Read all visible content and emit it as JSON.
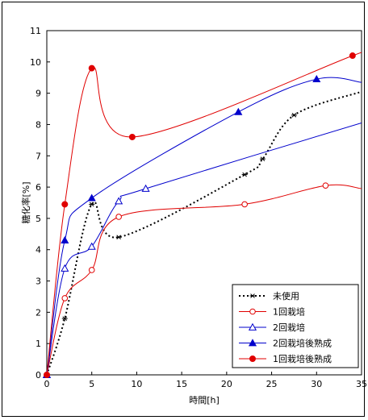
{
  "chart_data": {
    "type": "line",
    "title": "",
    "xlabel": "時間[h]",
    "ylabel": "糖化率[%]",
    "xlim": [
      0,
      35
    ],
    "ylim": [
      0,
      11
    ],
    "xticks": [
      "0",
      "5",
      "10",
      "15",
      "20",
      "25",
      "30",
      "35"
    ],
    "yticks": [
      "0",
      "1",
      "2",
      "3",
      "4",
      "5",
      "6",
      "7",
      "8",
      "9",
      "10",
      "11"
    ],
    "grid": false,
    "legend_position": "bottom-right",
    "series": [
      {
        "name": "未使用",
        "color": "#000000",
        "line_style": "dotted",
        "marker": "asterisk",
        "x": [
          0,
          2,
          5,
          8,
          22,
          24,
          27.5,
          35
        ],
        "y": [
          0,
          1.8,
          5.45,
          4.4,
          6.4,
          6.9,
          8.3,
          9.05
        ]
      },
      {
        "name": "1回栽培",
        "color": "#e00000",
        "line_style": "solid",
        "marker": "open-circle",
        "x": [
          0,
          2,
          5,
          8,
          22,
          31,
          35
        ],
        "y": [
          0,
          2.45,
          3.35,
          5.05,
          5.45,
          6.05,
          5.95
        ]
      },
      {
        "name": "2回栽培",
        "color": "#0000cc",
        "line_style": "solid",
        "marker": "open-triangle",
        "x": [
          0,
          2,
          5,
          8,
          11,
          35
        ],
        "y": [
          0,
          3.4,
          4.1,
          5.55,
          5.95,
          8.05
        ]
      },
      {
        "name": "2回栽培後熟成",
        "color": "#0000cc",
        "line_style": "solid",
        "marker": "filled-triangle",
        "x": [
          0,
          2,
          5,
          21.3,
          30,
          35
        ],
        "y": [
          0,
          4.3,
          5.65,
          8.4,
          9.45,
          9.35
        ]
      },
      {
        "name": "1回栽培後熟成",
        "color": "#e00000",
        "line_style": "solid",
        "marker": "filled-circle",
        "x": [
          0,
          2,
          5,
          9.5,
          34,
          35
        ],
        "y": [
          0,
          5.45,
          9.8,
          7.6,
          10.2,
          10.3
        ]
      }
    ]
  }
}
